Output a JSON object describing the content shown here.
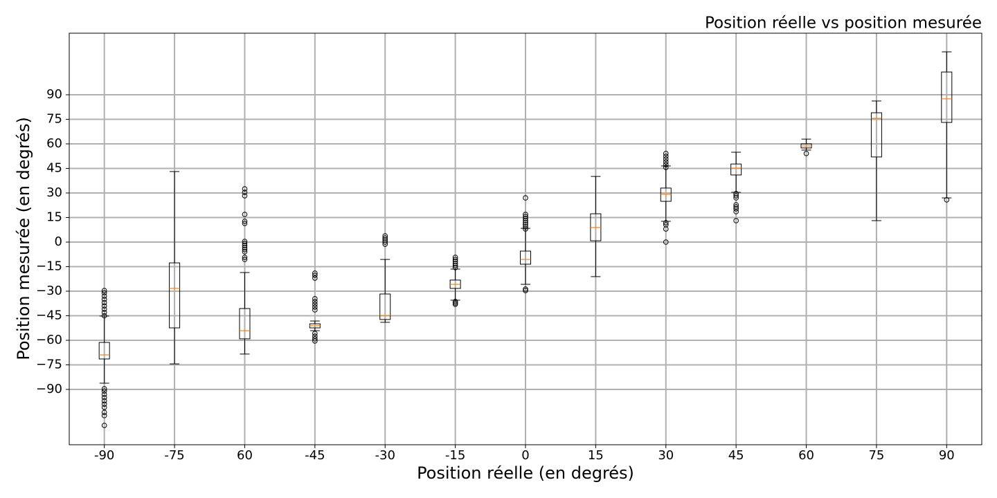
{
  "chart_data": {
    "type": "box",
    "title": "Position réelle vs position mesurée",
    "x_label": "Position réelle (en degrés)",
    "y_label": "Position mesurée (en degrés)",
    "categories": [
      "-90",
      "-75",
      "60",
      "-45",
      "-30",
      "-15",
      "0",
      "15",
      "30",
      "45",
      "60",
      "75",
      "90"
    ],
    "boxes": [
      {
        "whislo": -86.2,
        "q1": -71.4,
        "med": -68.9,
        "q3": -61.3,
        "whishi": -45.2,
        "fliers": [
          -29.6,
          -31,
          -33,
          -35,
          -37,
          -39,
          -41,
          -43,
          -45,
          -89.6,
          -91,
          -93,
          -95,
          -97,
          -99,
          -101,
          -104,
          -106,
          -112
        ]
      },
      {
        "whislo": -74.4,
        "q1": -52.4,
        "med": -28.3,
        "q3": -12.7,
        "whishi": 43.1,
        "fliers": []
      },
      {
        "whislo": -68.4,
        "q1": -59.1,
        "med": -54.1,
        "q3": -40.6,
        "whishi": -18.6,
        "fliers": [
          32.5,
          30.4,
          28.3,
          16.9,
          12.7,
          11.4,
          0.4,
          -0.8,
          -2.1,
          -3.4,
          -4.6,
          -5.9,
          -9.3,
          -10.6
        ]
      },
      {
        "whislo": -54.1,
        "q1": -52.4,
        "med": -51.1,
        "q3": -49.9,
        "whishi": -48.2,
        "fliers": [
          -19,
          -20.3,
          -22,
          -34.6,
          -36.3,
          -38,
          -39.7,
          -41.4,
          -55.8,
          -57.5,
          -59.1,
          -60.4
        ]
      },
      {
        "whislo": -49,
        "q1": -47.3,
        "med": -44.8,
        "q3": -31.7,
        "whishi": -10.6,
        "fliers": [
          3.8,
          2.5,
          1.3,
          0,
          -1.3
        ]
      },
      {
        "whislo": -35.5,
        "q1": -28.3,
        "med": -25.8,
        "q3": -23.2,
        "whishi": -16.5,
        "fliers": [
          -9.3,
          -10.6,
          -11.8,
          -13.1,
          -14.4,
          -15.6,
          -36.3,
          -37.2,
          -38
        ]
      },
      {
        "whislo": -25.8,
        "q1": -13.5,
        "med": -10.6,
        "q3": -5.5,
        "whishi": 8.4,
        "fliers": [
          27,
          16.9,
          15.6,
          14.4,
          13.1,
          11.8,
          10.6,
          9.3,
          8,
          -28.7,
          -29.6
        ]
      },
      {
        "whislo": -21.1,
        "q1": 0.8,
        "med": 8.9,
        "q3": 17.3,
        "whishi": 40.1,
        "fliers": []
      },
      {
        "whislo": 12.7,
        "q1": 24.9,
        "med": 29.2,
        "q3": 33,
        "whishi": 46.5,
        "fliers": [
          54.1,
          52.4,
          50.7,
          49,
          47.3,
          45.6,
          11.8,
          10.6,
          8,
          0
        ]
      },
      {
        "whislo": 30.4,
        "q1": 41,
        "med": 45.2,
        "q3": 47.7,
        "whishi": 54.9,
        "fliers": [
          29.6,
          28.3,
          27,
          22.8,
          21.5,
          20.3,
          18.6,
          13.1
        ]
      },
      {
        "whislo": 56.2,
        "q1": 57.5,
        "med": 58.7,
        "q3": 60,
        "whishi": 62.9,
        "fliers": [
          54.1
        ]
      },
      {
        "whislo": 13.1,
        "q1": 52,
        "med": 75.6,
        "q3": 79,
        "whishi": 86.2,
        "fliers": []
      },
      {
        "whislo": 27,
        "q1": 73.1,
        "med": 87.5,
        "q3": 103.9,
        "whishi": 116.2,
        "fliers": [
          25.8
        ]
      }
    ],
    "box_color": "#000000",
    "median_color": "#ff7f0e",
    "ylim": [
      -123.8,
      127.6
    ],
    "yticks": [
      {
        "value": -90,
        "label": "−90"
      },
      {
        "value": -75,
        "label": "−75"
      },
      {
        "value": -60,
        "label": "−60"
      },
      {
        "value": -45,
        "label": "−45"
      },
      {
        "value": -30,
        "label": "−30"
      },
      {
        "value": -15,
        "label": "−15"
      },
      0,
      15,
      30,
      45,
      60,
      75,
      90
    ],
    "grid": true
  }
}
